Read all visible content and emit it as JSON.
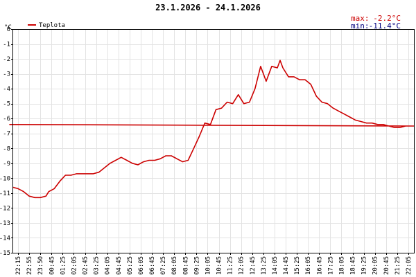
{
  "chart_data": {
    "type": "line",
    "title": "23.1.2026 - 24.1.2026",
    "ylabel": "°C",
    "ylim": [
      -15,
      0
    ],
    "yticks": [
      0,
      -1,
      -2,
      -3,
      -4,
      -5,
      -6,
      -7,
      -8,
      -9,
      -10,
      -11,
      -12,
      -13,
      -14,
      -15
    ],
    "grid": true,
    "legend_position": "top-left",
    "series": [
      {
        "name": "Teplota",
        "color": "#cc0000",
        "points": [
          [
            "22:15",
            -10.6
          ],
          [
            "22:35",
            -10.7
          ],
          [
            "22:55",
            -10.9
          ],
          [
            "23:15",
            -11.2
          ],
          [
            "23:35",
            -11.3
          ],
          [
            "23:55",
            -11.3
          ],
          [
            "00:15",
            -11.2
          ],
          [
            "00:25",
            -10.9
          ],
          [
            "00:45",
            -10.7
          ],
          [
            "01:05",
            -10.2
          ],
          [
            "01:25",
            -9.8
          ],
          [
            "01:45",
            -9.8
          ],
          [
            "02:05",
            -9.7
          ],
          [
            "02:25",
            -9.7
          ],
          [
            "02:45",
            -9.7
          ],
          [
            "03:05",
            -9.7
          ],
          [
            "03:25",
            -9.6
          ],
          [
            "03:45",
            -9.3
          ],
          [
            "04:05",
            -9.0
          ],
          [
            "04:25",
            -8.8
          ],
          [
            "04:45",
            -8.6
          ],
          [
            "05:05",
            -8.8
          ],
          [
            "05:25",
            -9.0
          ],
          [
            "05:45",
            -9.1
          ],
          [
            "06:05",
            -8.9
          ],
          [
            "06:25",
            -8.8
          ],
          [
            "06:45",
            -8.8
          ],
          [
            "07:05",
            -8.7
          ],
          [
            "07:25",
            -8.5
          ],
          [
            "07:45",
            -8.5
          ],
          [
            "08:05",
            -8.7
          ],
          [
            "08:25",
            -8.9
          ],
          [
            "08:45",
            -8.8
          ],
          [
            "09:05",
            -8.0
          ],
          [
            "09:25",
            -7.2
          ],
          [
            "09:45",
            -6.3
          ],
          [
            "10:05",
            -6.4
          ],
          [
            "10:25",
            -5.4
          ],
          [
            "10:45",
            -5.3
          ],
          [
            "11:05",
            -4.9
          ],
          [
            "11:25",
            -5.0
          ],
          [
            "11:45",
            -4.4
          ],
          [
            "12:05",
            -5.0
          ],
          [
            "12:25",
            -4.9
          ],
          [
            "12:45",
            -4.0
          ],
          [
            "13:05",
            -2.5
          ],
          [
            "13:25",
            -3.5
          ],
          [
            "13:45",
            -2.5
          ],
          [
            "14:05",
            -2.6
          ],
          [
            "14:15",
            -2.1
          ],
          [
            "14:25",
            -2.6
          ],
          [
            "14:45",
            -3.2
          ],
          [
            "15:05",
            -3.2
          ],
          [
            "15:25",
            -3.4
          ],
          [
            "15:45",
            -3.4
          ],
          [
            "16:05",
            -3.7
          ],
          [
            "16:25",
            -4.5
          ],
          [
            "16:45",
            -4.9
          ],
          [
            "17:05",
            -5.0
          ],
          [
            "17:25",
            -5.3
          ],
          [
            "17:45",
            -5.5
          ],
          [
            "18:05",
            -5.7
          ],
          [
            "18:25",
            -5.9
          ],
          [
            "18:45",
            -6.1
          ],
          [
            "19:05",
            -6.2
          ],
          [
            "19:25",
            -6.3
          ],
          [
            "19:45",
            -6.3
          ],
          [
            "20:05",
            -6.4
          ],
          [
            "20:25",
            -6.4
          ],
          [
            "20:45",
            -6.5
          ],
          [
            "21:05",
            -6.6
          ],
          [
            "21:25",
            -6.6
          ],
          [
            "21:45",
            -6.5
          ],
          [
            "22:05",
            -6.4
          ],
          [
            "22:15",
            -6.5
          ]
        ]
      }
    ],
    "xticks": [
      "22:15",
      "22:55",
      "23:50",
      "00:45",
      "01:25",
      "02:05",
      "02:45",
      "03:25",
      "04:05",
      "04:45",
      "05:25",
      "06:05",
      "06:45",
      "07:25",
      "08:05",
      "08:45",
      "09:25",
      "10:05",
      "10:45",
      "11:25",
      "12:05",
      "12:45",
      "13:25",
      "14:05",
      "14:45",
      "15:25",
      "16:05",
      "16:45",
      "17:25",
      "18:05",
      "18:45",
      "19:25",
      "20:05",
      "20:45",
      "21:25",
      "22:05"
    ],
    "stats": {
      "max_label": "max:",
      "max_value": "-2.2°C",
      "min_label": "min:",
      "min_value": "-11.4°C",
      "max_color": "#cc0000",
      "min_color": "#000080"
    }
  }
}
